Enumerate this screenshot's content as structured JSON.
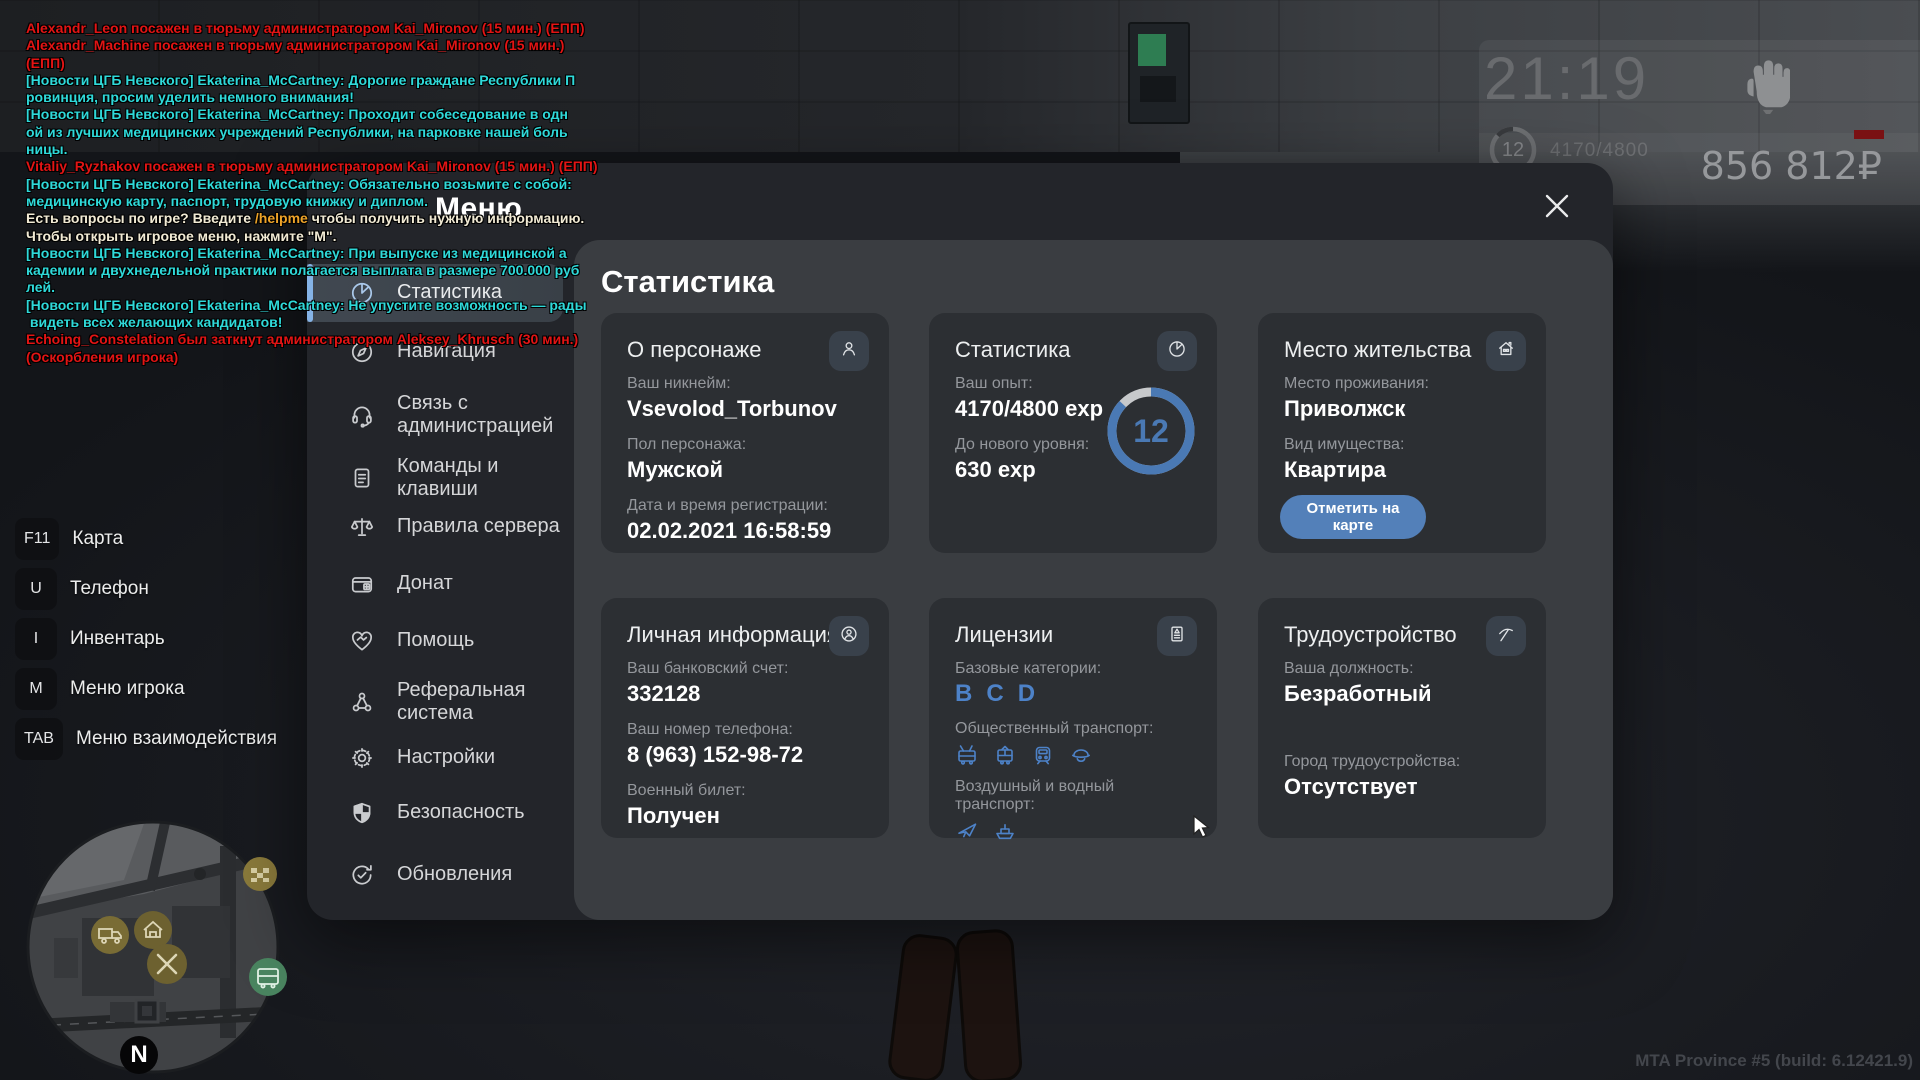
{
  "hud": {
    "time": "21:19",
    "level": "12",
    "exp": "4170/4800",
    "exp_progress_pct": 87,
    "money": "856 812₽",
    "footer": "MTA Province #5 (build: 6.12421.9)"
  },
  "chat": {
    "palette": {
      "r": "#e31414",
      "c": "#2fd9d9",
      "w": "#f1ead4",
      "o": "#eda328"
    },
    "lines": [
      [
        {
          "t": "Alexandr_Leon посажен в тюрьму администратором Kai_Mironov (15 мин.) (ЕПП)",
          "c": "r"
        }
      ],
      [
        {
          "t": "Alexandr_Machine посажен в тюрьму администратором Kai_Mironov (15 мин.)",
          "c": "r"
        }
      ],
      [
        {
          "t": "(ЕПП)",
          "c": "r"
        }
      ],
      [
        {
          "t": "[Новости ЦГБ Невского] Ekaterina_McCartney: Дорогие граждане Республики П",
          "c": "c"
        }
      ],
      [
        {
          "t": "ровинция, просим уделить немного внимания!",
          "c": "c"
        }
      ],
      [
        {
          "t": "[Новости ЦГБ Невского] Ekaterina_McCartney: Проходит собеседование в одн",
          "c": "c"
        }
      ],
      [
        {
          "t": "ой из лучших медицинских учреждений Республики, на парковке нашей боль",
          "c": "c"
        }
      ],
      [
        {
          "t": "ницы.",
          "c": "c"
        }
      ],
      [
        {
          "t": "Vitaliy_Ryzhakov посажен в тюрьму администратором Kai_Mironov (15 мин.) (ЕПП)",
          "c": "r"
        }
      ],
      [
        {
          "t": "[Новости ЦГБ Невского] Ekaterina_McCartney: Обязательно возьмите с собой:",
          "c": "c"
        }
      ],
      [
        {
          "t": "медицинскую карту, паспорт, трудовую книжку и диплом.",
          "c": "c"
        }
      ],
      [
        {
          "t": "Есть вопросы по игре? Введите ",
          "c": "w"
        },
        {
          "t": "/helpme",
          "c": "o"
        },
        {
          "t": " чтобы получить нужную информацию.",
          "c": "w"
        }
      ],
      [
        {
          "t": "Чтобы открыть игровое меню, нажмите \"М\".",
          "c": "w"
        }
      ],
      [
        {
          "t": "[Новости ЦГБ Невского] Ekaterina_McCartney: При выпуске из медицинской а",
          "c": "c"
        }
      ],
      [
        {
          "t": "кадемии и двухнедельной практики полагается выплата в размере 700.000 руб",
          "c": "c"
        }
      ],
      [
        {
          "t": "лей.",
          "c": "c"
        }
      ],
      [
        {
          "t": "[Новости ЦГБ Невского] Ekaterina_McCartney: Не упустите возможность — рады",
          "c": "c"
        }
      ],
      [
        {
          "t": " видеть всех желающих кандидатов!",
          "c": "c"
        }
      ],
      [
        {
          "t": "Echoing_Constelation был заткнут администратором Aleksey_Khrusch (30 мин.)",
          "c": "r"
        }
      ],
      [
        {
          "t": "(Оскорбления игрока)",
          "c": "r"
        }
      ]
    ]
  },
  "keybinds": [
    {
      "key": "F11",
      "label": "Карта"
    },
    {
      "key": "U",
      "label": "Телефон"
    },
    {
      "key": "I",
      "label": "Инвентарь"
    },
    {
      "key": "M",
      "label": "Меню игрока"
    },
    {
      "key": "TAB",
      "label": "Меню взаимодействия"
    }
  ],
  "minimap": {
    "compass": "N",
    "icons": [
      "taxi",
      "truck",
      "house-delivery",
      "tools",
      "bus"
    ]
  },
  "menu": {
    "title": "Меню",
    "sidebar": [
      {
        "id": "statistics",
        "icon": "pie",
        "label": "Статистика",
        "selected": true
      },
      {
        "id": "navigation",
        "icon": "compass",
        "label": "Навигация"
      },
      {
        "id": "admin-contact",
        "icon": "headset",
        "label": "Связь с",
        "label2": "администрацией"
      },
      {
        "id": "commands",
        "icon": "doc",
        "label": "Команды и",
        "label2": "клавиши"
      },
      {
        "id": "server-rules",
        "icon": "scales",
        "label": "Правила сервера"
      },
      {
        "id": "donate",
        "icon": "wallet",
        "label": "Донат"
      },
      {
        "id": "help",
        "icon": "heart",
        "label": "Помощь"
      },
      {
        "id": "referral",
        "icon": "referral",
        "label": "Реферальная",
        "label2": "система"
      },
      {
        "id": "settings",
        "icon": "gear",
        "label": "Настройки"
      },
      {
        "id": "security",
        "icon": "shield",
        "label": "Безопасность"
      },
      {
        "id": "updates",
        "icon": "update",
        "label": "Обновления"
      }
    ],
    "content": {
      "title": "Статистика",
      "cards": [
        {
          "id": "about",
          "title": "О персонаже",
          "icon": "person",
          "fields": [
            {
              "label": "Ваш никнейм:",
              "value": "Vsevolod_Torbunov"
            },
            {
              "label": "Пол персонажа:",
              "value": "Мужской"
            },
            {
              "label": "Дата и время регистрации:",
              "value": "02.02.2021 16:58:59"
            }
          ]
        },
        {
          "id": "stats",
          "title": "Статистика",
          "icon": "pie",
          "fields": [
            {
              "label": "Ваш опыт:",
              "value": "4170/4800 exp"
            },
            {
              "label": "До нового уровня:",
              "value": "630 exp"
            }
          ],
          "ring": {
            "level": "12",
            "progress_pct": 87
          }
        },
        {
          "id": "residence",
          "title": "Место жительства",
          "icon": "house",
          "fields": [
            {
              "label": "Место проживания:",
              "value": "Приволжск"
            },
            {
              "label": "Вид имущества:",
              "value": "Квартира"
            }
          ],
          "button": {
            "label": "Отметить на карте"
          }
        },
        {
          "id": "personal",
          "title": "Личная информация",
          "icon": "person-circle",
          "fields": [
            {
              "label": "Ваш банковский счет:",
              "value": "332128"
            },
            {
              "label": "Ваш номер телефона:",
              "value": "8 (963) 152-98-72"
            },
            {
              "label": "Военный билет:",
              "value": "Получен"
            }
          ]
        },
        {
          "id": "licenses",
          "title": "Лицензии",
          "icon": "id-card",
          "groups": [
            {
              "label": "Базовые категории:",
              "letters": [
                "B",
                "C",
                "D"
              ]
            },
            {
              "label": "Общественный транспорт:",
              "icons": [
                "trolleybus",
                "tram",
                "metro",
                "cap"
              ]
            },
            {
              "label": "Воздушный и водный транспорт:",
              "icons": [
                "plane",
                "ship"
              ]
            }
          ]
        },
        {
          "id": "employment",
          "title": "Трудоустройство",
          "icon": "pickaxe",
          "wide": true,
          "fields": [
            {
              "label": "Ваша должность:",
              "value": "Безработный"
            },
            {
              "label": "Город трудоустройства:",
              "value": "Отсутствует"
            }
          ]
        }
      ]
    }
  }
}
